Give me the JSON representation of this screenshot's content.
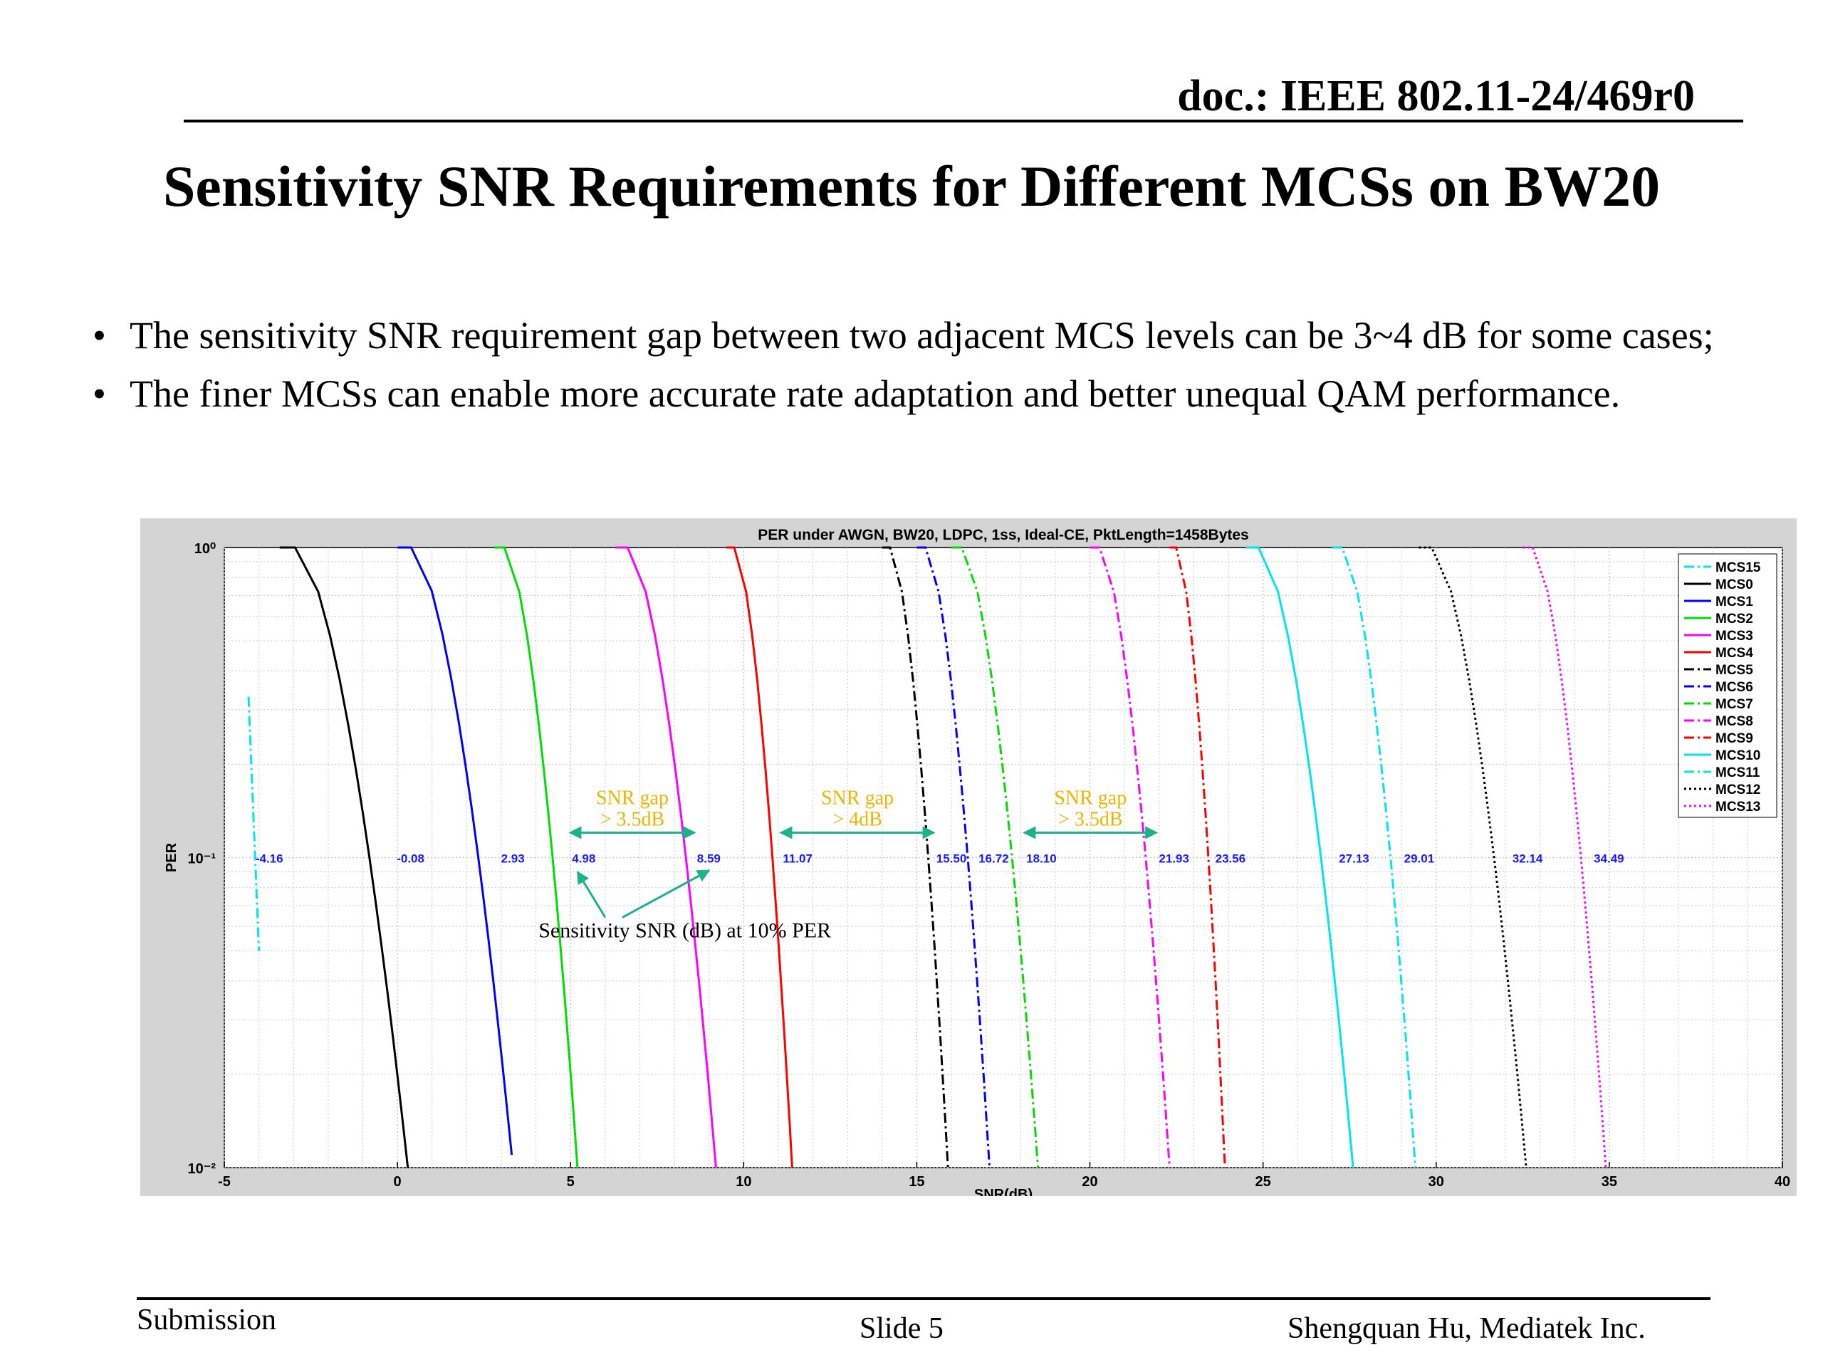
{
  "header": {
    "doc_id": "doc.: IEEE 802.11-24/469r0"
  },
  "slide_title": "Sensitivity SNR Requirements for Different MCSs on BW20",
  "bullets": [
    "The sensitivity SNR requirement gap between two adjacent MCS levels can be 3~4 dB for some cases;",
    "The finer MCSs can enable more accurate rate adaptation and better unequal QAM performance."
  ],
  "chart_data": {
    "type": "line",
    "title": "PER under AWGN, BW20, LDPC, 1ss, Ideal-CE, PktLength=1458Bytes",
    "xlabel": "SNR(dB)",
    "ylabel": "PER",
    "xlim": [
      -5,
      40
    ],
    "ylim": [
      0.01,
      1
    ],
    "yscale": "log",
    "xticks": [
      -5,
      0,
      5,
      10,
      15,
      20,
      25,
      30,
      35,
      40
    ],
    "yticks": [
      {
        "value": 1,
        "label": "10⁰"
      },
      {
        "value": 0.1,
        "label": "10⁻¹"
      },
      {
        "value": 0.01,
        "label": "10⁻²"
      }
    ],
    "grid": true,
    "legend_position": "top-right",
    "series": [
      {
        "name": "MCS15",
        "color": "#00e5ee",
        "dash": "dashdot",
        "sens": -4.16,
        "label": "-4.16",
        "x": [
          -4.3,
          -4.0
        ],
        "ylo": 0.05,
        "yhi": 0.33
      },
      {
        "name": "MCS0",
        "color": "#000000",
        "dash": "solid",
        "sens": -0.08,
        "label": "-0.08",
        "x": [
          -3.4,
          0.3
        ],
        "ylo": 0.01
      },
      {
        "name": "MCS1",
        "color": "#0000ff",
        "dash": "solid",
        "sens": 2.93,
        "label": "2.93",
        "x": [
          0.0,
          3.3
        ],
        "ylo": 0.011
      },
      {
        "name": "MCS2",
        "color": "#00dd00",
        "dash": "solid",
        "sens": 4.98,
        "label": "4.98",
        "x": [
          2.8,
          5.2
        ],
        "ylo": 0.01
      },
      {
        "name": "MCS3",
        "color": "#ff00ff",
        "dash": "solid",
        "sens": 8.59,
        "label": "8.59",
        "x": [
          6.3,
          9.2
        ],
        "ylo": 0.01
      },
      {
        "name": "MCS4",
        "color": "#ff0000",
        "dash": "solid",
        "sens": 11.07,
        "label": "11.07",
        "x": [
          9.5,
          11.4
        ],
        "ylo": 0.01
      },
      {
        "name": "MCS5",
        "color": "#000000",
        "dash": "dashdot",
        "sens": 15.5,
        "label": "15.50",
        "x": [
          14.0,
          15.9
        ],
        "ylo": 0.01
      },
      {
        "name": "MCS6",
        "color": "#0000ff",
        "dash": "dashdot",
        "sens": 16.72,
        "label": "16.72",
        "x": [
          15.0,
          17.1
        ],
        "ylo": 0.01
      },
      {
        "name": "MCS7",
        "color": "#00dd00",
        "dash": "dashdot",
        "sens": 18.1,
        "label": "18.10",
        "x": [
          16.0,
          18.5
        ],
        "ylo": 0.01
      },
      {
        "name": "MCS8",
        "color": "#ff00ff",
        "dash": "dashdot",
        "sens": 21.93,
        "label": "21.93",
        "x": [
          20.0,
          22.3
        ],
        "ylo": 0.01
      },
      {
        "name": "MCS9",
        "color": "#ff0000",
        "dash": "dashdot",
        "sens": 23.56,
        "label": "23.56",
        "x": [
          22.3,
          23.9
        ],
        "ylo": 0.01
      },
      {
        "name": "MCS10",
        "color": "#00e5ee",
        "dash": "solid",
        "sens": 27.13,
        "label": "27.13",
        "x": [
          24.5,
          27.6
        ],
        "ylo": 0.01
      },
      {
        "name": "MCS11",
        "color": "#00e5ee",
        "dash": "dashdot",
        "sens": 29.01,
        "label": "29.01",
        "x": [
          27.0,
          29.4
        ],
        "ylo": 0.01
      },
      {
        "name": "MCS12",
        "color": "#000000",
        "dash": "dotted",
        "sens": 32.14,
        "label": "32.14",
        "x": [
          29.5,
          32.6
        ],
        "ylo": 0.01
      },
      {
        "name": "MCS13",
        "color": "#ff00ff",
        "dash": "dotted",
        "sens": 34.49,
        "label": "34.49",
        "x": [
          32.5,
          34.9
        ],
        "ylo": 0.01
      }
    ],
    "annotations": {
      "gaps": [
        {
          "line1": "SNR gap",
          "line2": "> 3.5dB",
          "from": 4.98,
          "to": 8.59
        },
        {
          "line1": "SNR gap",
          "line2": "> 4dB",
          "from": 11.07,
          "to": 15.5
        },
        {
          "line1": "SNR gap",
          "line2": "> 3.5dB",
          "from": 18.1,
          "to": 21.93
        }
      ],
      "note": "Sensitivity SNR (dB) at 10% PER",
      "gap_color": "#f0b400",
      "arrow_color": "#1ab38a"
    }
  },
  "footer": {
    "left": "Submission",
    "center": "Slide 5",
    "right": "Shengquan Hu, Mediatek Inc."
  }
}
